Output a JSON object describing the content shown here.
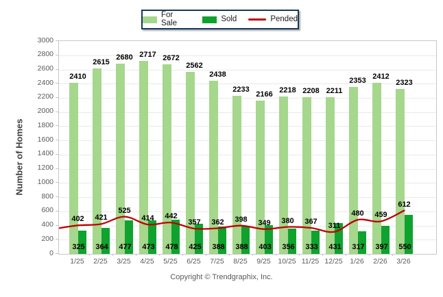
{
  "chart_data": {
    "type": "bar",
    "title": "",
    "categories": [
      "1/25",
      "2/25",
      "3/25",
      "4/25",
      "5/25",
      "6/25",
      "7/25",
      "8/25",
      "9/25",
      "10/25",
      "11/25",
      "12/25",
      "1/26",
      "2/26",
      "3/26"
    ],
    "series": [
      {
        "name": "For Sale",
        "type": "bar",
        "color": "#A5D78C",
        "values": [
          2410,
          2615,
          2680,
          2717,
          2672,
          2562,
          2438,
          2233,
          2166,
          2218,
          2208,
          2211,
          2353,
          2412,
          2323
        ]
      },
      {
        "name": "Sold",
        "type": "bar",
        "color": "#0FA22F",
        "values": [
          325,
          364,
          477,
          473,
          478,
          425,
          388,
          388,
          403,
          356,
          333,
          431,
          317,
          397,
          550
        ]
      },
      {
        "name": "Pended",
        "type": "line",
        "color": "#C00000",
        "values": [
          402,
          421,
          525,
          414,
          442,
          357,
          362,
          398,
          349,
          380,
          367,
          311,
          480,
          459,
          612
        ]
      }
    ],
    "xlabel": "",
    "ylabel": "Number of Homes",
    "ylim": [
      0,
      3000
    ],
    "yticks": [
      0,
      200,
      400,
      600,
      800,
      1000,
      1200,
      1400,
      1600,
      1800,
      2000,
      2200,
      2400,
      2600,
      2800,
      3000
    ],
    "grid": true,
    "legend_position": "top-center"
  },
  "footer": {
    "copyright": "Copyright © Trendgraphix, Inc."
  },
  "theme": {
    "background": "#FFFFFF",
    "gridline_color": "#E9E9E9",
    "axis_border_color": "#C6C6C6",
    "tick_label_color": "#595959",
    "value_label_color": "#000000",
    "axis_title_color": "#3F3F3F",
    "legend_border_color": "#17375D"
  }
}
